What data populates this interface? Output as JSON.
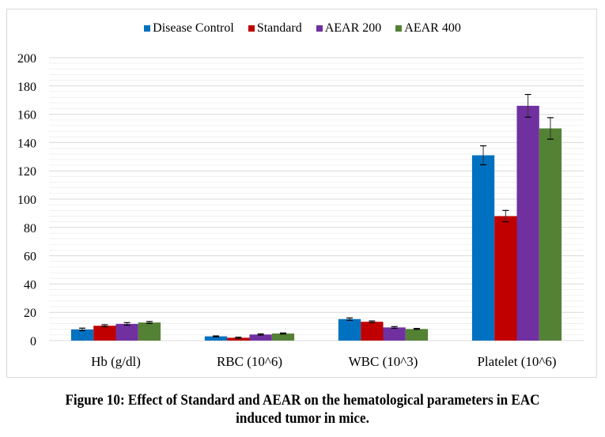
{
  "chart_data": {
    "type": "bar",
    "title": "",
    "xlabel": "",
    "ylabel": "",
    "ylim": [
      0,
      200
    ],
    "yticks": [
      0,
      20,
      40,
      60,
      80,
      100,
      120,
      140,
      160,
      180,
      200
    ],
    "ytick_labels": [
      "0",
      "20",
      "40",
      "60",
      "80",
      "100",
      "120",
      "140",
      "160",
      "180",
      "200"
    ],
    "grid": true,
    "legend_position": "top",
    "categories": [
      "Hb (g/dl)",
      "RBC (10^6)",
      "WBC (10^3)",
      "Platelet (10^6)"
    ],
    "series": [
      {
        "name": "Disease Control",
        "color": "#0070c0",
        "values": [
          7.9,
          3.0,
          15.2,
          131
        ],
        "errors": [
          0.9,
          0.3,
          0.8,
          6.7
        ]
      },
      {
        "name": "Standard",
        "color": "#c00000",
        "values": [
          10.5,
          2.0,
          13.3,
          88
        ],
        "errors": [
          0.7,
          0.4,
          0.6,
          4.0
        ]
      },
      {
        "name": "AEAR 200",
        "color": "#7030a0",
        "values": [
          11.8,
          4.3,
          9.3,
          166
        ],
        "errors": [
          0.9,
          0.4,
          0.6,
          8.0
        ]
      },
      {
        "name": "AEAR 400",
        "color": "#548235",
        "values": [
          12.8,
          5.0,
          8.2,
          150
        ],
        "errors": [
          0.7,
          0.4,
          0.4,
          7.6
        ]
      }
    ]
  },
  "caption": {
    "line1": "Figure 10: Effect of Standard and AEAR on the hematological parameters in EAC",
    "line2": "induced tumor in mice."
  }
}
